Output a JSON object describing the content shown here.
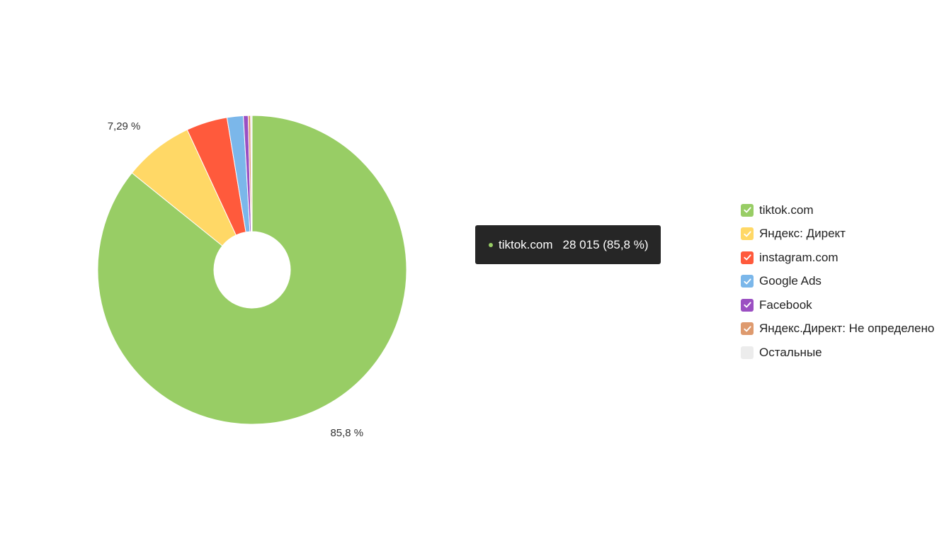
{
  "chart_data": {
    "type": "pie",
    "donut": true,
    "title": "",
    "series": [
      {
        "name": "tiktok.com",
        "value": 85.8,
        "color": "#98cd65"
      },
      {
        "name": "Яндекс: Директ",
        "value": 7.29,
        "color": "#ffd866"
      },
      {
        "name": "instagram.com",
        "value": 4.3,
        "color": "#ff5a3c"
      },
      {
        "name": "Google Ads",
        "value": 1.7,
        "color": "#7bb7ea"
      },
      {
        "name": "Facebook",
        "value": 0.5,
        "color": "#9b4fc2"
      },
      {
        "name": "Яндекс.Директ: Не определено",
        "value": 0.25,
        "color": "#de9a6e"
      },
      {
        "name": "Остальные",
        "value": 0.16,
        "color": "#ececec"
      }
    ],
    "data_labels": [
      {
        "series_index": 1,
        "text": "7,29 %"
      },
      {
        "series_index": 0,
        "text": "85,8 %"
      }
    ],
    "legend_position": "right",
    "tooltip": {
      "name": "tiktok.com",
      "value_text": "28 015 (85,8 %)",
      "color": "#98cd65"
    }
  }
}
